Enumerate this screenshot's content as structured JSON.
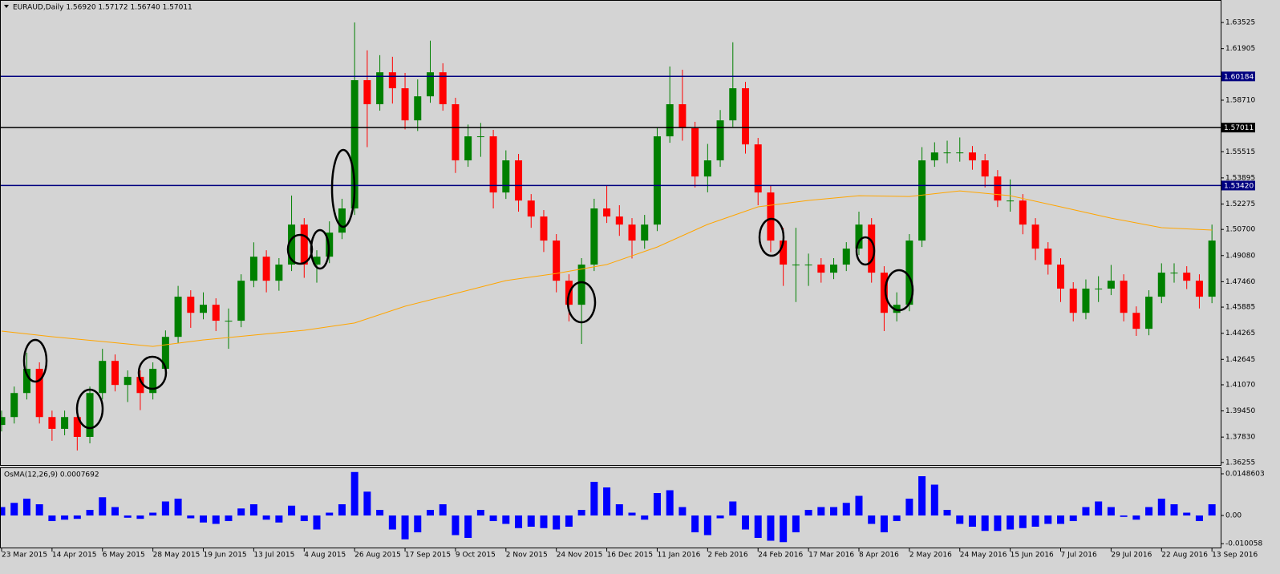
{
  "chart_data": [
    {
      "type": "candlestick",
      "title": "EURAUD,Daily  1.56920 1.57172 1.56740 1.57011",
      "up_color": "#008000",
      "down_color": "#ff0000",
      "open": [
        1.3858,
        1.3907,
        1.4056,
        1.4206,
        1.3907,
        1.3834,
        1.3907,
        1.3784,
        1.4056,
        1.4255,
        1.4106,
        1.4156,
        1.4056,
        1.4206,
        1.4404,
        1.4653,
        1.4553,
        1.4603,
        1.4504,
        1.4504,
        1.4752,
        1.4901,
        1.4752,
        1.4852,
        1.51,
        1.4852,
        1.4901,
        1.505,
        1.52,
        1.5995,
        1.5846,
        1.6044,
        1.5945,
        1.5746,
        1.5895,
        1.6044,
        1.5846,
        1.5498,
        1.5647,
        1.5647,
        1.5299,
        1.5498,
        1.5249,
        1.515,
        1.5001,
        1.4752,
        1.4603,
        1.4852,
        1.52,
        1.515,
        1.51,
        1.5001,
        1.51,
        1.5647,
        1.5846,
        1.5697,
        1.5398,
        1.5498,
        1.5746,
        1.5945,
        1.5597,
        1.5299,
        1.5001,
        1.4852,
        1.4852,
        1.4852,
        1.4802,
        1.4852,
        1.4951,
        1.51,
        1.4802,
        1.4553,
        1.4603,
        1.5001,
        1.5498,
        1.5547,
        1.5547,
        1.5547,
        1.5498,
        1.5398,
        1.5249,
        1.5249,
        1.51,
        1.4951,
        1.4852,
        1.4703,
        1.4553,
        1.4703,
        1.4703,
        1.4752,
        1.4553,
        1.4454,
        1.4653,
        1.4802,
        1.4802,
        1.4752,
        1.4653
      ],
      "high": [
        1.3947,
        1.4096,
        1.4306,
        1.4246,
        1.3947,
        1.3947,
        1.3947,
        1.4096,
        1.433,
        1.4295,
        1.4196,
        1.4196,
        1.4246,
        1.4444,
        1.472,
        1.4693,
        1.468,
        1.4643,
        1.458,
        1.4792,
        1.499,
        1.4941,
        1.4892,
        1.528,
        1.514,
        1.4941,
        1.512,
        1.526,
        1.6353,
        1.618,
        1.615,
        1.614,
        1.604,
        1.6,
        1.624,
        1.61,
        1.5886,
        1.572,
        1.573,
        1.5687,
        1.556,
        1.5538,
        1.5289,
        1.519,
        1.5041,
        1.4792,
        1.4892,
        1.526,
        1.534,
        1.522,
        1.514,
        1.516,
        1.57,
        1.608,
        1.606,
        1.5737,
        1.56,
        1.581,
        1.623,
        1.5985,
        1.5637,
        1.5339,
        1.508,
        1.508,
        1.492,
        1.4892,
        1.4892,
        1.4991,
        1.518,
        1.514,
        1.4842,
        1.468,
        1.5041,
        1.558,
        1.561,
        1.562,
        1.564,
        1.5587,
        1.5538,
        1.5438,
        1.538,
        1.5289,
        1.514,
        1.4991,
        1.4892,
        1.4743,
        1.476,
        1.478,
        1.485,
        1.4792,
        1.4593,
        1.4693,
        1.486,
        1.486,
        1.4842,
        1.4792,
        1.51
      ],
      "low": [
        1.3818,
        1.3867,
        1.4016,
        1.3867,
        1.376,
        1.3794,
        1.37,
        1.3744,
        1.4016,
        1.4066,
        1.4,
        1.395,
        1.4016,
        1.4166,
        1.4364,
        1.446,
        1.4513,
        1.444,
        1.433,
        1.4464,
        1.4712,
        1.468,
        1.469,
        1.4812,
        1.477,
        1.474,
        1.4861,
        1.501,
        1.516,
        1.558,
        1.5806,
        1.585,
        1.569,
        1.568,
        1.5855,
        1.5806,
        1.542,
        1.5458,
        1.552,
        1.52,
        1.5259,
        1.518,
        1.508,
        1.493,
        1.468,
        1.45,
        1.436,
        1.4812,
        1.511,
        1.503,
        1.489,
        1.495,
        1.506,
        1.5607,
        1.562,
        1.533,
        1.53,
        1.5458,
        1.5706,
        1.554,
        1.522,
        1.493,
        1.472,
        1.462,
        1.472,
        1.474,
        1.4762,
        1.4812,
        1.4911,
        1.474,
        1.444,
        1.45,
        1.4563,
        1.4961,
        1.5458,
        1.548,
        1.549,
        1.544,
        1.533,
        1.5209,
        1.518,
        1.504,
        1.488,
        1.479,
        1.462,
        1.45,
        1.4513,
        1.462,
        1.4663,
        1.45,
        1.441,
        1.4414,
        1.4613,
        1.474,
        1.47,
        1.458,
        1.4613
      ],
      "close": [
        1.3907,
        1.4056,
        1.4206,
        1.3907,
        1.3834,
        1.3907,
        1.3784,
        1.4056,
        1.4255,
        1.4106,
        1.4156,
        1.4056,
        1.4206,
        1.4404,
        1.4653,
        1.4553,
        1.4603,
        1.4504,
        1.4504,
        1.4752,
        1.4901,
        1.4752,
        1.4852,
        1.51,
        1.4852,
        1.4901,
        1.505,
        1.52,
        1.5995,
        1.5846,
        1.6044,
        1.5945,
        1.5746,
        1.5895,
        1.6044,
        1.5846,
        1.5498,
        1.5647,
        1.5647,
        1.5299,
        1.5498,
        1.5249,
        1.515,
        1.5001,
        1.4752,
        1.4603,
        1.4852,
        1.52,
        1.515,
        1.51,
        1.5001,
        1.51,
        1.5647,
        1.5846,
        1.5697,
        1.5398,
        1.5498,
        1.5746,
        1.5945,
        1.5597,
        1.5299,
        1.5001,
        1.4852,
        1.4852,
        1.4852,
        1.4802,
        1.4852,
        1.4951,
        1.51,
        1.4802,
        1.4553,
        1.4603,
        1.5001,
        1.5498,
        1.5547,
        1.5547,
        1.5547,
        1.5498,
        1.5398,
        1.5249,
        1.5249,
        1.51,
        1.4951,
        1.4852,
        1.4703,
        1.4553,
        1.4703,
        1.4703,
        1.4752,
        1.4553,
        1.4454,
        1.4653,
        1.4802,
        1.4802,
        1.4752,
        1.4653,
        1.5001
      ],
      "ma_color": "#ffa500",
      "ma_x": [
        0,
        4,
        8,
        12,
        16,
        20,
        24,
        28,
        32,
        36,
        40,
        44,
        48,
        52,
        56,
        60,
        64,
        68,
        72,
        76,
        80,
        84,
        88,
        92,
        96
      ],
      "ma_values": [
        1.444,
        1.4405,
        1.4375,
        1.4345,
        1.4385,
        1.4415,
        1.4445,
        1.449,
        1.4594,
        1.4673,
        1.4753,
        1.4797,
        1.4852,
        1.4961,
        1.5101,
        1.521,
        1.525,
        1.5279,
        1.5274,
        1.5309,
        1.5279,
        1.521,
        1.514,
        1.5081,
        1.5066
      ],
      "levels": [
        {
          "value": 1.60184,
          "label": "1.60184",
          "color": "#000080"
        },
        {
          "value": 1.57011,
          "label": "1.57011",
          "color": "#000000"
        },
        {
          "value": 1.5342,
          "label": "1.53420",
          "color": "#000080"
        }
      ],
      "xlim": [
        -0.127,
        96.69
      ],
      "xticks": [
        {
          "value": 0,
          "label": "23 Mar 2015"
        },
        {
          "value": 4,
          "label": "14 Apr 2015"
        },
        {
          "value": 8,
          "label": "6 May 2015"
        },
        {
          "value": 12,
          "label": "28 May 2015"
        },
        {
          "value": 16,
          "label": "19 Jun 2015"
        },
        {
          "value": 20,
          "label": "13 Jul 2015"
        },
        {
          "value": 24,
          "label": "4 Aug 2015"
        },
        {
          "value": 28,
          "label": "26 Aug 2015"
        },
        {
          "value": 32,
          "label": "17 Sep 2015"
        },
        {
          "value": 36,
          "label": "9 Oct 2015"
        },
        {
          "value": 40,
          "label": "2 Nov 2015"
        },
        {
          "value": 44,
          "label": "24 Nov 2015"
        },
        {
          "value": 48,
          "label": "16 Dec 2015"
        },
        {
          "value": 52,
          "label": "11 Jan 2016"
        },
        {
          "value": 56,
          "label": "2 Feb 2016"
        },
        {
          "value": 60,
          "label": "24 Feb 2016"
        },
        {
          "value": 64,
          "label": "17 Mar 2016"
        },
        {
          "value": 68,
          "label": "8 Apr 2016"
        },
        {
          "value": 72,
          "label": "2 May 2016"
        },
        {
          "value": 76,
          "label": "24 May 2016"
        },
        {
          "value": 80,
          "label": "15 Jun 2016"
        },
        {
          "value": 84,
          "label": "7 Jul 2016"
        },
        {
          "value": 88,
          "label": "29 Jul 2016"
        },
        {
          "value": 92,
          "label": "22 Aug 2016"
        },
        {
          "value": 96,
          "label": "13 Sep 2016"
        }
      ],
      "ylim": [
        1.361,
        1.6492
      ],
      "yticks": [
        1.63525,
        1.61905,
        {
          "value": 1.5871,
          "label": "1.58710"
        },
        1.55515,
        1.53895,
        1.52275,
        {
          "value": 1.507,
          "label": "1.50700"
        },
        {
          "value": 1.4908,
          "label": "1.49080"
        },
        {
          "value": 1.4746,
          "label": "1.47460"
        },
        1.45885,
        1.44265,
        1.42645,
        {
          "value": 1.4107,
          "label": "1.41070"
        },
        {
          "value": 1.3945,
          "label": "1.39450"
        },
        {
          "value": 1.3783,
          "label": "1.37830"
        },
        1.36255
      ]
    },
    {
      "type": "bar",
      "title": "OsMA(12,26,9) 0.0007692",
      "color": "#0000ff",
      "values": [
        0.003,
        0.0045,
        0.006,
        0.004,
        -0.002,
        -0.0015,
        -0.0012,
        0.002,
        0.0065,
        0.003,
        -0.0008,
        -0.0012,
        0.001,
        0.005,
        0.006,
        -0.001,
        -0.0025,
        -0.003,
        -0.002,
        0.0025,
        0.004,
        -0.0015,
        -0.0025,
        0.0035,
        -0.002,
        -0.005,
        0.001,
        0.004,
        0.0155,
        0.0085,
        0.002,
        -0.005,
        -0.0085,
        -0.006,
        0.002,
        0.004,
        -0.007,
        -0.008,
        0.002,
        -0.002,
        -0.003,
        -0.0045,
        -0.004,
        -0.0045,
        -0.005,
        -0.004,
        0.002,
        0.012,
        0.01,
        0.004,
        0.001,
        -0.0015,
        0.008,
        0.009,
        0.003,
        -0.006,
        -0.007,
        -0.001,
        0.005,
        -0.005,
        -0.008,
        -0.009,
        -0.0095,
        -0.006,
        0.002,
        0.003,
        0.003,
        0.0045,
        0.007,
        -0.003,
        -0.006,
        -0.002,
        0.006,
        0.014,
        0.011,
        0.002,
        -0.003,
        -0.004,
        -0.0055,
        -0.0055,
        -0.005,
        -0.0045,
        -0.004,
        -0.003,
        -0.003,
        -0.002,
        0.003,
        0.005,
        0.003,
        -0.0005,
        -0.0015,
        0.003,
        0.006,
        0.004,
        0.001,
        -0.002,
        0.004
      ],
      "xlim": [
        -0.127,
        96.69
      ],
      "ylim": [
        -0.01143,
        0.01715
      ],
      "yticks": [
        0.0148603,
        {
          "value": 0,
          "label": "0.00"
        },
        -0.010058
      ]
    }
  ]
}
